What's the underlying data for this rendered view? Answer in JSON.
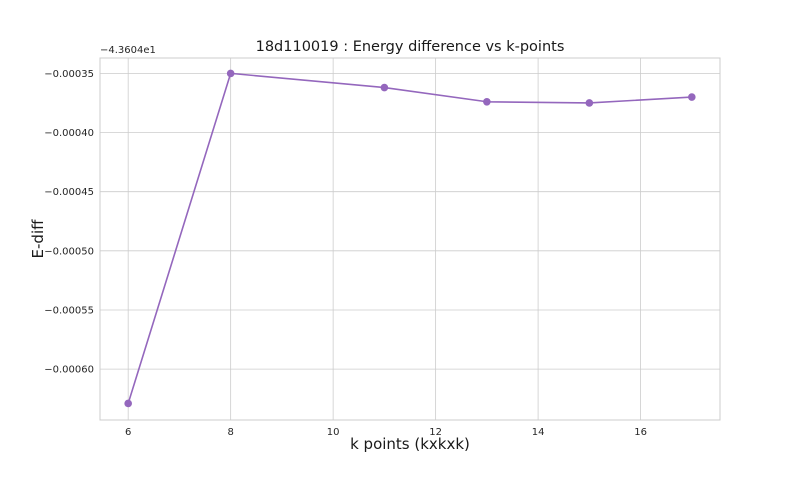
{
  "chart_data": {
    "type": "line",
    "title": "18d110019 : Energy difference vs k-points",
    "xlabel": "k points (kxkxk)",
    "ylabel": "E-diff",
    "y_offset_label": "−4.3604e1",
    "x": [
      6,
      8,
      11,
      13,
      15,
      17
    ],
    "series": [
      {
        "values": [
          -0.000629,
          -0.00035,
          -0.000362,
          -0.000374,
          -0.000375,
          -0.00037
        ],
        "color": "#9467bd",
        "marker": "circle"
      }
    ],
    "xlim": [
      5.45,
      17.55
    ],
    "ylim": [
      -0.000643,
      -0.000337
    ],
    "xticks": [
      6,
      8,
      10,
      12,
      14,
      16
    ],
    "xtick_labels": [
      "6",
      "8",
      "10",
      "12",
      "14",
      "16"
    ],
    "yticks": [
      -0.0006,
      -0.00055,
      -0.0005,
      -0.00045,
      -0.0004,
      -0.00035
    ],
    "ytick_labels": [
      "−0.00060",
      "−0.00055",
      "−0.00050",
      "−0.00045",
      "−0.00040",
      "−0.00035"
    ],
    "grid": true,
    "style": "whitegrid"
  }
}
